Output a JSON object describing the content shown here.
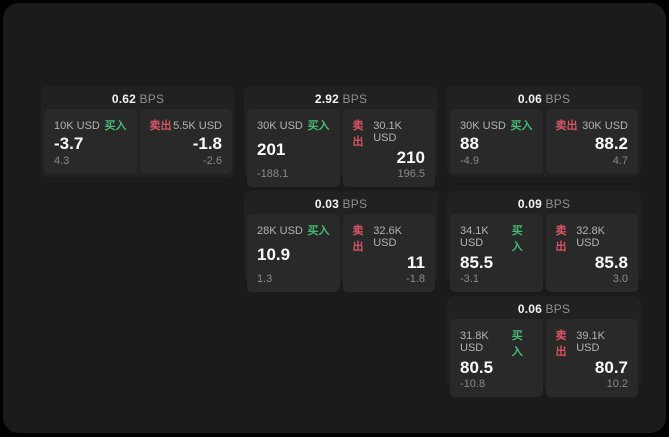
{
  "labels": {
    "bps_unit": "BPS",
    "buy": "买入",
    "sell": "卖出"
  },
  "colors": {
    "background": "#000000",
    "panel": "#1b1b1c",
    "card": "#212121",
    "tile": "#292929",
    "buy_accent": "#45ba77",
    "sell_accent": "#d55568"
  },
  "cards": [
    {
      "grid": {
        "row": 1,
        "col": 1
      },
      "bps": "0.62",
      "buy": {
        "size": "10K USD",
        "price": "-3.7",
        "delta": "4.3"
      },
      "sell": {
        "size": "5.5K USD",
        "price": "-1.8",
        "delta": "-2.6"
      }
    },
    {
      "grid": {
        "row": 1,
        "col": 2
      },
      "bps": "2.92",
      "buy": {
        "size": "30K USD",
        "price": "201",
        "delta": "-188.1"
      },
      "sell": {
        "size": "30.1K USD",
        "price": "210",
        "delta": "196.5"
      }
    },
    {
      "grid": {
        "row": 1,
        "col": 3
      },
      "bps": "0.06",
      "buy": {
        "size": "30K USD",
        "price": "88",
        "delta": "-4.9"
      },
      "sell": {
        "size": "30K USD",
        "price": "88.2",
        "delta": "4.7"
      }
    },
    {
      "grid": {
        "row": 2,
        "col": 2
      },
      "bps": "0.03",
      "buy": {
        "size": "28K USD",
        "price": "10.9",
        "delta": "1.3"
      },
      "sell": {
        "size": "32.6K USD",
        "price": "11",
        "delta": "-1.8"
      }
    },
    {
      "grid": {
        "row": 2,
        "col": 3
      },
      "bps": "0.09",
      "buy": {
        "size": "34.1K USD",
        "price": "85.5",
        "delta": "-3.1"
      },
      "sell": {
        "size": "32.8K USD",
        "price": "85.8",
        "delta": "3.0"
      }
    },
    {
      "grid": {
        "row": 3,
        "col": 3
      },
      "bps": "0.06",
      "buy": {
        "size": "31.8K USD",
        "price": "80.5",
        "delta": "-10.8"
      },
      "sell": {
        "size": "39.1K USD",
        "price": "80.7",
        "delta": "10.2"
      }
    }
  ]
}
